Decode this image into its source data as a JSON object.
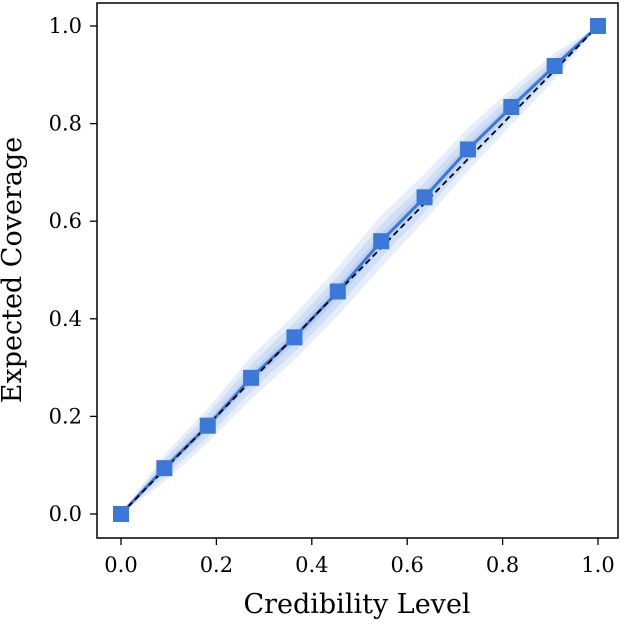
{
  "chart_data": {
    "type": "line",
    "xlabel": "Credibility Level",
    "ylabel": "Expected Coverage",
    "xlim": [
      0.0,
      1.0
    ],
    "ylim": [
      0.0,
      1.0
    ],
    "xticks": [
      "0.0",
      "0.2",
      "0.4",
      "0.6",
      "0.8",
      "1.0"
    ],
    "yticks": [
      "0.0",
      "0.2",
      "0.4",
      "0.6",
      "0.8",
      "1.0"
    ],
    "grid": false,
    "series": [
      {
        "style": "line-with-square-markers",
        "color": "#3c78d8",
        "x": [
          0.0,
          0.0909,
          0.1818,
          0.2727,
          0.3636,
          0.4545,
          0.5455,
          0.6364,
          0.7273,
          0.8182,
          0.9091,
          1.0
        ],
        "y": [
          0.0,
          0.094,
          0.181,
          0.279,
          0.362,
          0.456,
          0.559,
          0.649,
          0.747,
          0.834,
          0.918,
          1.0
        ]
      }
    ],
    "uncertainty_bands": {
      "color": "#3c78d8",
      "x": [
        0.0,
        0.0909,
        0.1818,
        0.2727,
        0.3636,
        0.4545,
        0.5455,
        0.6364,
        0.7273,
        0.8182,
        0.9091,
        1.0
      ],
      "lower": [
        [
          0.0,
          0.085,
          0.17,
          0.266,
          0.348,
          0.441,
          0.543,
          0.635,
          0.734,
          0.823,
          0.91,
          1.0
        ],
        [
          0.0,
          0.076,
          0.158,
          0.251,
          0.332,
          0.424,
          0.525,
          0.619,
          0.719,
          0.811,
          0.901,
          1.0
        ],
        [
          0.0,
          0.066,
          0.146,
          0.235,
          0.316,
          0.406,
          0.506,
          0.601,
          0.703,
          0.797,
          0.891,
          1.0
        ]
      ],
      "upper": [
        [
          0.0,
          0.103,
          0.192,
          0.292,
          0.376,
          0.471,
          0.575,
          0.663,
          0.76,
          0.845,
          0.926,
          1.0
        ],
        [
          0.0,
          0.112,
          0.204,
          0.307,
          0.392,
          0.488,
          0.593,
          0.679,
          0.775,
          0.857,
          0.935,
          1.0
        ],
        [
          0.0,
          0.122,
          0.216,
          0.323,
          0.408,
          0.506,
          0.612,
          0.697,
          0.791,
          0.871,
          0.945,
          1.0
        ]
      ]
    },
    "reference_line": {
      "style": "dashed",
      "color": "#000000",
      "x": [
        0.0,
        1.0
      ],
      "y": [
        0.0,
        1.0
      ]
    }
  }
}
